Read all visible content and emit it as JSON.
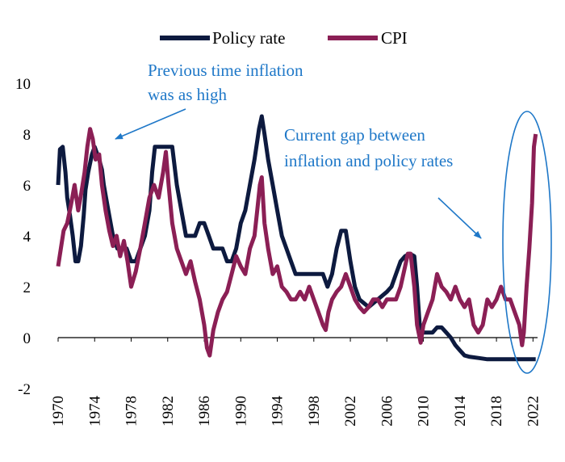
{
  "chart_data": {
    "type": "line",
    "title": "",
    "xlabel": "",
    "ylabel": "",
    "xlim": [
      1970,
      2022.5
    ],
    "ylim": [
      -2,
      10
    ],
    "y_ticks": [
      "-2",
      "0",
      "2",
      "4",
      "6",
      "8",
      "10"
    ],
    "x_ticks": [
      "1970",
      "1974",
      "1978",
      "1982",
      "1986",
      "1990",
      "1994",
      "1998",
      "2002",
      "2006",
      "2010",
      "2014",
      "2018",
      "2022"
    ],
    "grid": false,
    "legend_position": "top",
    "series": [
      {
        "name": "Policy rate",
        "color": "#0d1a3f",
        "points": [
          [
            1970.0,
            6.0
          ],
          [
            1970.2,
            7.4
          ],
          [
            1970.5,
            7.5
          ],
          [
            1970.8,
            6.5
          ],
          [
            1971.0,
            5.5
          ],
          [
            1971.3,
            4.8
          ],
          [
            1971.6,
            4.0
          ],
          [
            1971.9,
            3.0
          ],
          [
            1972.2,
            3.0
          ],
          [
            1972.5,
            3.6
          ],
          [
            1972.8,
            4.8
          ],
          [
            1973.0,
            5.8
          ],
          [
            1973.3,
            6.5
          ],
          [
            1973.7,
            7.2
          ],
          [
            1974.0,
            7.5
          ],
          [
            1974.5,
            7.0
          ],
          [
            1974.8,
            6.6
          ],
          [
            1975.0,
            6.0
          ],
          [
            1975.5,
            5.0
          ],
          [
            1976.0,
            4.0
          ],
          [
            1976.5,
            3.5
          ],
          [
            1977.0,
            3.5
          ],
          [
            1977.5,
            3.5
          ],
          [
            1978.0,
            3.0
          ],
          [
            1978.5,
            3.0
          ],
          [
            1979.0,
            3.5
          ],
          [
            1979.5,
            4.0
          ],
          [
            1980.0,
            5.0
          ],
          [
            1980.3,
            6.5
          ],
          [
            1980.6,
            7.5
          ],
          [
            1981.0,
            7.5
          ],
          [
            1982.0,
            7.5
          ],
          [
            1982.5,
            7.5
          ],
          [
            1983.0,
            6.0
          ],
          [
            1983.5,
            5.0
          ],
          [
            1984.0,
            4.0
          ],
          [
            1985.0,
            4.0
          ],
          [
            1985.5,
            4.5
          ],
          [
            1986.0,
            4.5
          ],
          [
            1986.5,
            4.0
          ],
          [
            1987.0,
            3.5
          ],
          [
            1988.0,
            3.5
          ],
          [
            1988.5,
            3.0
          ],
          [
            1989.0,
            3.0
          ],
          [
            1989.5,
            3.5
          ],
          [
            1990.0,
            4.5
          ],
          [
            1990.5,
            5.0
          ],
          [
            1991.0,
            6.0
          ],
          [
            1991.5,
            7.0
          ],
          [
            1992.0,
            8.2
          ],
          [
            1992.3,
            8.7
          ],
          [
            1992.6,
            8.0
          ],
          [
            1993.0,
            7.0
          ],
          [
            1993.5,
            6.0
          ],
          [
            1994.0,
            5.0
          ],
          [
            1994.5,
            4.0
          ],
          [
            1995.0,
            3.5
          ],
          [
            1995.5,
            3.0
          ],
          [
            1996.0,
            2.5
          ],
          [
            1997.0,
            2.5
          ],
          [
            1998.0,
            2.5
          ],
          [
            1999.0,
            2.5
          ],
          [
            1999.5,
            2.0
          ],
          [
            2000.0,
            2.5
          ],
          [
            2000.5,
            3.5
          ],
          [
            2001.0,
            4.2
          ],
          [
            2001.5,
            4.2
          ],
          [
            2002.0,
            3.0
          ],
          [
            2002.5,
            2.0
          ],
          [
            2003.0,
            1.5
          ],
          [
            2004.0,
            1.2
          ],
          [
            2005.0,
            1.5
          ],
          [
            2006.0,
            1.8
          ],
          [
            2006.5,
            2.0
          ],
          [
            2007.0,
            2.5
          ],
          [
            2007.5,
            3.0
          ],
          [
            2008.0,
            3.2
          ],
          [
            2008.5,
            3.3
          ],
          [
            2009.0,
            3.2
          ],
          [
            2009.3,
            2.0
          ],
          [
            2009.6,
            0.5
          ],
          [
            2010.0,
            0.2
          ],
          [
            2011.0,
            0.2
          ],
          [
            2011.5,
            0.4
          ],
          [
            2012.0,
            0.4
          ],
          [
            2012.5,
            0.2
          ],
          [
            2013.0,
            0.0
          ],
          [
            2013.5,
            -0.3
          ],
          [
            2014.0,
            -0.5
          ],
          [
            2014.5,
            -0.7
          ],
          [
            2015.0,
            -0.75
          ],
          [
            2016.0,
            -0.8
          ],
          [
            2017.0,
            -0.85
          ],
          [
            2018.0,
            -0.85
          ],
          [
            2019.0,
            -0.85
          ],
          [
            2020.0,
            -0.85
          ],
          [
            2021.0,
            -0.85
          ],
          [
            2022.0,
            -0.85
          ],
          [
            2022.3,
            -0.85
          ]
        ]
      },
      {
        "name": "CPI",
        "color": "#8b1f55",
        "points": [
          [
            1970.0,
            2.8
          ],
          [
            1970.3,
            3.5
          ],
          [
            1970.6,
            4.2
          ],
          [
            1971.0,
            4.5
          ],
          [
            1971.4,
            5.2
          ],
          [
            1971.8,
            6.0
          ],
          [
            1972.2,
            5.0
          ],
          [
            1972.5,
            5.6
          ],
          [
            1972.9,
            6.5
          ],
          [
            1973.2,
            7.5
          ],
          [
            1973.5,
            8.2
          ],
          [
            1973.8,
            7.8
          ],
          [
            1974.1,
            7.0
          ],
          [
            1974.5,
            7.2
          ],
          [
            1974.8,
            6.0
          ],
          [
            1975.2,
            5.0
          ],
          [
            1975.6,
            4.2
          ],
          [
            1976.0,
            3.6
          ],
          [
            1976.4,
            4.0
          ],
          [
            1976.8,
            3.2
          ],
          [
            1977.2,
            3.8
          ],
          [
            1977.6,
            3.0
          ],
          [
            1978.0,
            2.0
          ],
          [
            1978.5,
            2.6
          ],
          [
            1979.0,
            3.5
          ],
          [
            1979.5,
            4.5
          ],
          [
            1980.0,
            5.5
          ],
          [
            1980.5,
            6.0
          ],
          [
            1981.0,
            5.5
          ],
          [
            1981.5,
            6.5
          ],
          [
            1981.8,
            7.3
          ],
          [
            1982.1,
            6.0
          ],
          [
            1982.5,
            4.5
          ],
          [
            1983.0,
            3.5
          ],
          [
            1983.5,
            3.0
          ],
          [
            1984.0,
            2.5
          ],
          [
            1984.5,
            3.0
          ],
          [
            1985.0,
            2.2
          ],
          [
            1985.5,
            1.5
          ],
          [
            1986.0,
            0.5
          ],
          [
            1986.3,
            -0.4
          ],
          [
            1986.6,
            -0.7
          ],
          [
            1987.0,
            0.3
          ],
          [
            1987.5,
            1.0
          ],
          [
            1988.0,
            1.5
          ],
          [
            1988.5,
            1.8
          ],
          [
            1989.0,
            2.5
          ],
          [
            1989.5,
            3.2
          ],
          [
            1990.0,
            2.8
          ],
          [
            1990.5,
            2.5
          ],
          [
            1991.0,
            3.5
          ],
          [
            1991.5,
            4.0
          ],
          [
            1991.8,
            5.0
          ],
          [
            1992.1,
            6.0
          ],
          [
            1992.3,
            6.3
          ],
          [
            1992.6,
            4.5
          ],
          [
            1993.0,
            3.5
          ],
          [
            1993.5,
            2.5
          ],
          [
            1994.0,
            2.8
          ],
          [
            1994.5,
            2.0
          ],
          [
            1995.0,
            1.8
          ],
          [
            1995.5,
            1.5
          ],
          [
            1996.0,
            1.5
          ],
          [
            1996.5,
            1.8
          ],
          [
            1997.0,
            1.5
          ],
          [
            1997.5,
            2.0
          ],
          [
            1998.0,
            1.5
          ],
          [
            1998.5,
            1.0
          ],
          [
            1999.0,
            0.5
          ],
          [
            1999.3,
            0.3
          ],
          [
            1999.6,
            1.0
          ],
          [
            2000.0,
            1.5
          ],
          [
            2000.5,
            1.8
          ],
          [
            2001.0,
            2.0
          ],
          [
            2001.5,
            2.5
          ],
          [
            2002.0,
            2.0
          ],
          [
            2002.5,
            1.5
          ],
          [
            2003.0,
            1.2
          ],
          [
            2003.5,
            1.0
          ],
          [
            2004.0,
            1.2
          ],
          [
            2004.5,
            1.5
          ],
          [
            2005.0,
            1.5
          ],
          [
            2005.5,
            1.2
          ],
          [
            2006.0,
            1.5
          ],
          [
            2006.5,
            1.5
          ],
          [
            2007.0,
            1.5
          ],
          [
            2007.5,
            2.0
          ],
          [
            2008.0,
            2.8
          ],
          [
            2008.3,
            3.3
          ],
          [
            2008.6,
            3.3
          ],
          [
            2009.0,
            2.0
          ],
          [
            2009.3,
            0.5
          ],
          [
            2009.7,
            -0.2
          ],
          [
            2010.0,
            0.5
          ],
          [
            2010.5,
            1.0
          ],
          [
            2011.0,
            1.5
          ],
          [
            2011.5,
            2.5
          ],
          [
            2012.0,
            2.0
          ],
          [
            2012.5,
            1.8
          ],
          [
            2013.0,
            1.5
          ],
          [
            2013.5,
            2.0
          ],
          [
            2014.0,
            1.5
          ],
          [
            2014.5,
            1.2
          ],
          [
            2015.0,
            1.5
          ],
          [
            2015.5,
            0.5
          ],
          [
            2016.0,
            0.2
          ],
          [
            2016.5,
            0.5
          ],
          [
            2017.0,
            1.5
          ],
          [
            2017.5,
            1.2
          ],
          [
            2018.0,
            1.5
          ],
          [
            2018.5,
            2.0
          ],
          [
            2019.0,
            1.5
          ],
          [
            2019.5,
            1.5
          ],
          [
            2020.0,
            1.0
          ],
          [
            2020.5,
            0.5
          ],
          [
            2020.8,
            -0.3
          ],
          [
            2021.0,
            0.2
          ],
          [
            2021.3,
            2.0
          ],
          [
            2021.6,
            3.5
          ],
          [
            2021.9,
            5.3
          ],
          [
            2022.1,
            7.5
          ],
          [
            2022.3,
            8.0
          ]
        ]
      }
    ],
    "annotations": [
      {
        "lines": [
          "Previous time inflation",
          "was as high"
        ],
        "color": "#1f78c8"
      },
      {
        "lines": [
          "Current gap between",
          "inflation and policy rates"
        ],
        "color": "#1f78c8"
      }
    ]
  }
}
